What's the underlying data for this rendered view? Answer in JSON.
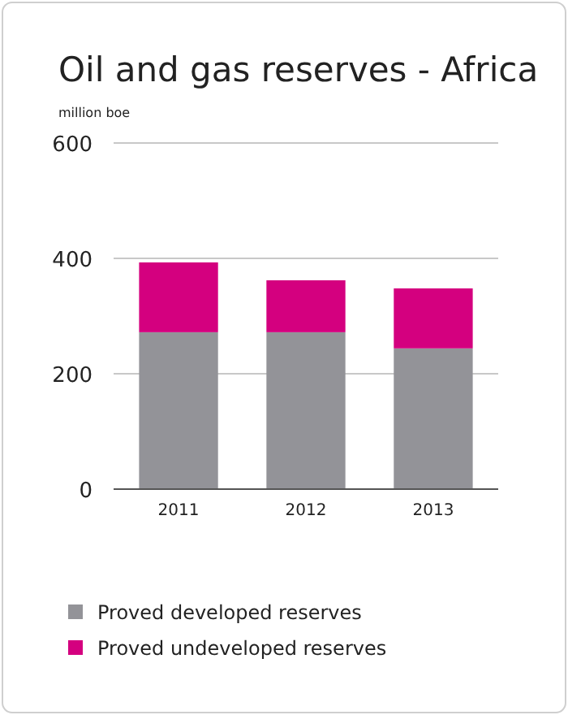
{
  "chart_data": {
    "type": "bar",
    "title": "Oil and gas reserves - Africa",
    "ylabel": "million boe",
    "categories": [
      "2011",
      "2012",
      "2013"
    ],
    "stacked": true,
    "series": [
      {
        "name": "Proved developed reserves",
        "color": "#939398",
        "values": [
          272,
          272,
          244
        ]
      },
      {
        "name": "Proved undeveloped reserves",
        "color": "#d4007f",
        "values": [
          121,
          90,
          104
        ]
      }
    ],
    "ylim": [
      0,
      600
    ],
    "yticks": [
      0,
      200,
      400,
      600
    ],
    "grid": "y",
    "legend": "bottom"
  }
}
